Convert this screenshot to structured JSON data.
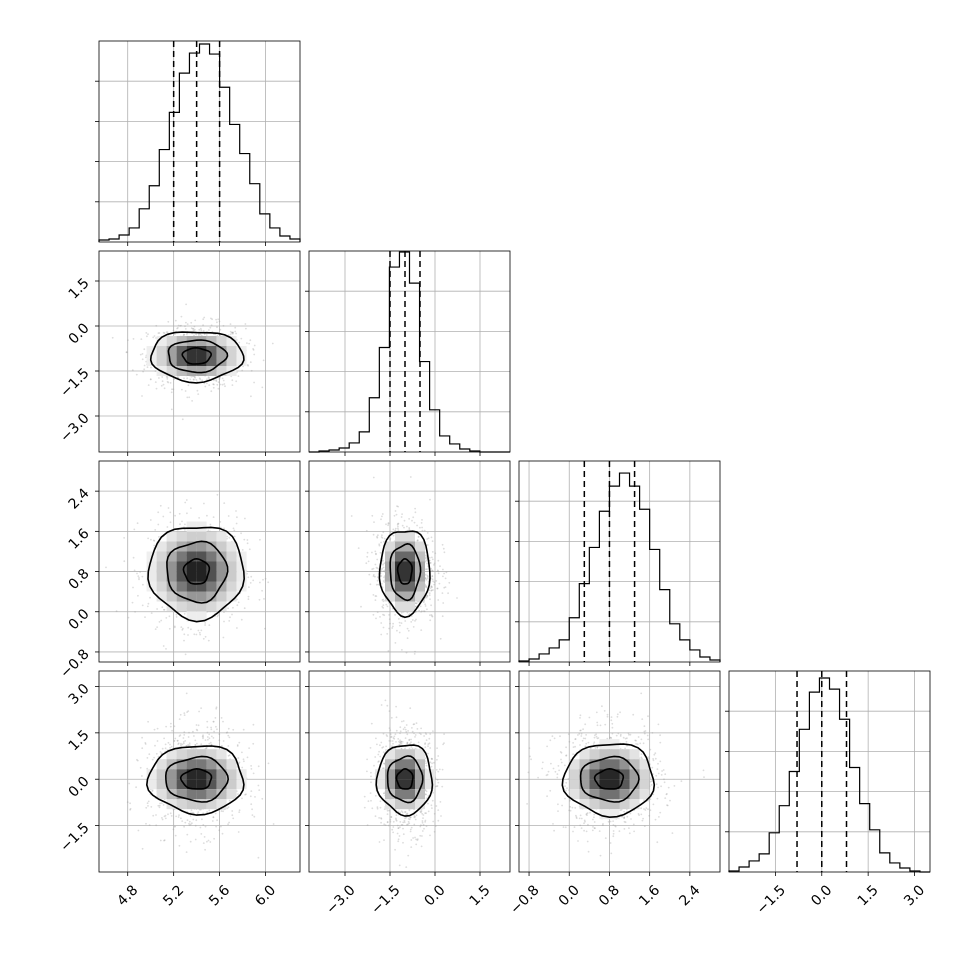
{
  "chart_data": {
    "type": "corner",
    "grid": true,
    "parameters": [
      {
        "mean": 5.4,
        "sd": 0.2,
        "range": [
          4.55,
          6.3
        ],
        "ticks": [
          4.8,
          5.2,
          5.6,
          6.0
        ],
        "tick_labels": [
          "4.8",
          "5.2",
          "5.6",
          "6.0"
        ],
        "quantiles": [
          5.2,
          5.4,
          5.6
        ],
        "hist_bins": [
          0.01,
          0.015,
          0.035,
          0.07,
          0.165,
          0.28,
          0.46,
          0.645,
          0.84,
          0.94,
          0.985,
          0.935,
          0.77,
          0.585,
          0.44,
          0.29,
          0.14,
          0.07,
          0.03,
          0.015
        ]
      },
      {
        "mean": -1.0,
        "sd": 0.5,
        "range": [
          -4.2,
          2.5
        ],
        "ticks": [
          -3.0,
          -1.5,
          0.0,
          1.5
        ],
        "tick_labels": [
          "−3.0",
          "−1.5",
          "0.0",
          "1.5"
        ],
        "quantiles": [
          -1.5,
          -1.0,
          -0.5
        ],
        "hist_bins": [
          0,
          0.005,
          0.01,
          0.02,
          0.045,
          0.1,
          0.27,
          0.52,
          0.92,
          0.995,
          0.84,
          0.45,
          0.21,
          0.08,
          0.04,
          0.015,
          0.005,
          0,
          0,
          0
        ]
      },
      {
        "mean": 0.8,
        "sd": 0.5,
        "range": [
          -1.0,
          3.0
        ],
        "ticks": [
          -0.8,
          0.0,
          0.8,
          1.6,
          2.4
        ],
        "tick_labels": [
          "−0.8",
          "0.0",
          "0.8",
          "1.6",
          "2.4"
        ],
        "quantiles": [
          0.3,
          0.8,
          1.3
        ],
        "hist_bins": [
          0.005,
          0.015,
          0.04,
          0.07,
          0.11,
          0.22,
          0.39,
          0.57,
          0.75,
          0.875,
          0.94,
          0.875,
          0.76,
          0.56,
          0.36,
          0.19,
          0.11,
          0.06,
          0.025,
          0.01
        ]
      },
      {
        "mean": 0.0,
        "sd": 0.8,
        "range": [
          -3.0,
          3.5
        ],
        "ticks": [
          -1.5,
          0.0,
          1.5,
          3.0
        ],
        "tick_labels": [
          "−1.5",
          "0.0",
          "1.5",
          "3.0"
        ],
        "quantiles": [
          -0.8,
          0.0,
          0.8
        ],
        "hist_bins": [
          0.005,
          0.025,
          0.055,
          0.09,
          0.195,
          0.33,
          0.5,
          0.71,
          0.895,
          0.965,
          0.91,
          0.76,
          0.52,
          0.34,
          0.21,
          0.095,
          0.045,
          0.02,
          0.005,
          0
        ]
      }
    ],
    "hist_y_ticks": [
      0.2,
      0.4,
      0.6,
      0.8
    ],
    "pair_contours": [
      {
        "row": 1,
        "col": 0,
        "ellipse_axes": [
          [
            0.92,
            0.5
          ],
          [
            0.58,
            0.32
          ],
          [
            0.28,
            0.16
          ]
        ]
      },
      {
        "row": 2,
        "col": 0,
        "ellipse_axes": [
          [
            0.95,
            0.93
          ],
          [
            0.6,
            0.6
          ],
          [
            0.25,
            0.25
          ]
        ]
      },
      {
        "row": 2,
        "col": 1,
        "ellipse_axes": [
          [
            0.5,
            0.85
          ],
          [
            0.3,
            0.55
          ],
          [
            0.14,
            0.25
          ]
        ]
      },
      {
        "row": 3,
        "col": 0,
        "ellipse_axes": [
          [
            0.95,
            0.68
          ],
          [
            0.62,
            0.44
          ],
          [
            0.3,
            0.2
          ]
        ]
      },
      {
        "row": 3,
        "col": 1,
        "ellipse_axes": [
          [
            0.55,
            0.7
          ],
          [
            0.35,
            0.45
          ],
          [
            0.16,
            0.2
          ]
        ]
      },
      {
        "row": 3,
        "col": 2,
        "ellipse_axes": [
          [
            0.9,
            0.72
          ],
          [
            0.58,
            0.44
          ],
          [
            0.28,
            0.2
          ]
        ]
      }
    ]
  }
}
